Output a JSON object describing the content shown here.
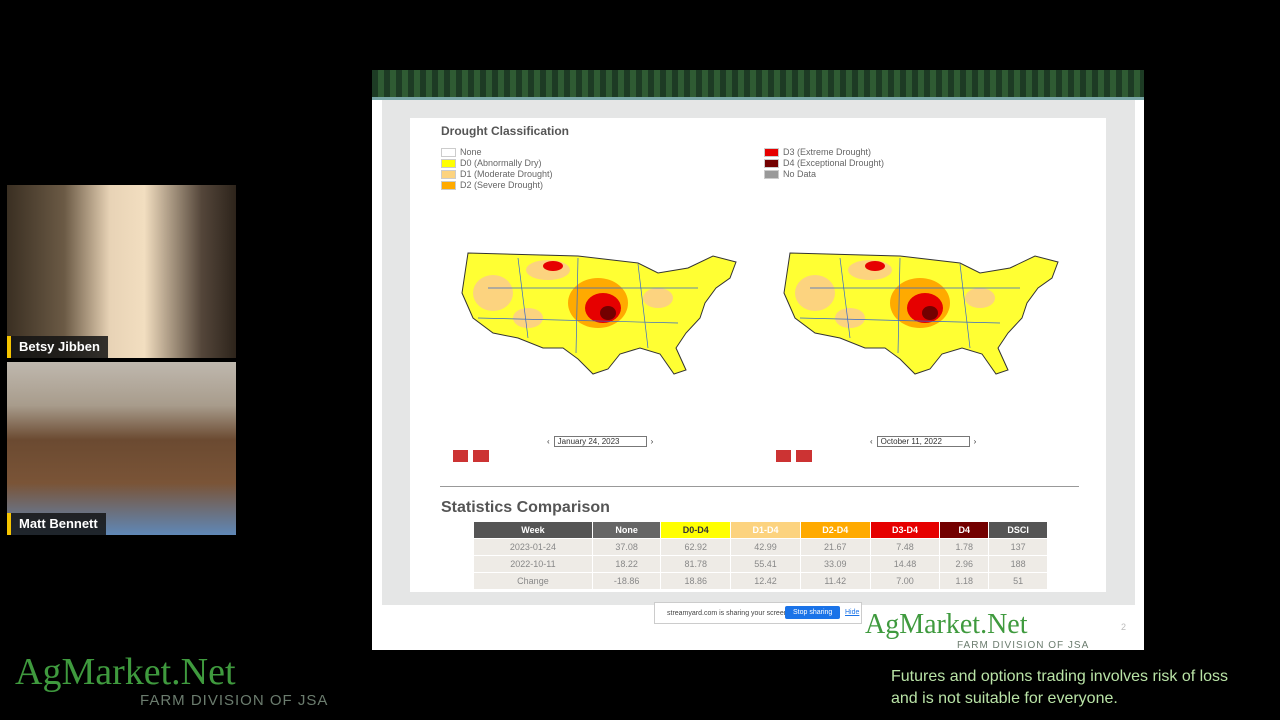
{
  "participants": [
    {
      "name": "Betsy Jibben"
    },
    {
      "name": "Matt Bennett"
    }
  ],
  "slide": {
    "legend_title": "Drought Classification",
    "legend": [
      "None",
      "D0 (Abnormally Dry)",
      "D1 (Moderate Drought)",
      "D2 (Severe Drought)",
      "D3 (Extreme Drought)",
      "D4 (Exceptional Drought)",
      "No Data"
    ],
    "maps": [
      {
        "date": "January 24, 2023"
      },
      {
        "date": "October 11, 2022"
      }
    ],
    "stats_title": "Statistics Comparison",
    "table": {
      "header": [
        "Week",
        "None",
        "D0-D4",
        "D1-D4",
        "D2-D4",
        "D3-D4",
        "D4",
        "DSCI"
      ],
      "rows": [
        [
          "2023-01-24",
          "37.08",
          "62.92",
          "42.99",
          "21.67",
          "7.48",
          "1.78",
          "137"
        ],
        [
          "2022-10-11",
          "18.22",
          "81.78",
          "55.41",
          "33.09",
          "14.48",
          "2.96",
          "188"
        ],
        [
          "Change",
          "-18.86",
          "18.86",
          "12.42",
          "11.42",
          "7.00",
          "1.18",
          "51"
        ]
      ]
    },
    "share_bar": {
      "text": "streamyard.com is sharing your screen.",
      "button": "Stop sharing",
      "hide": "Hide"
    },
    "logo": {
      "name": "AgMarket.Net",
      "tagline": "FARM DIVISION OF JSA"
    },
    "page_number": "2"
  },
  "logo": {
    "name": "AgMarket.Net",
    "tagline": "FARM DIVISION OF JSA"
  },
  "disclaimer": [
    "Futures and options trading involves risk of loss",
    "and is not suitable for everyone."
  ]
}
